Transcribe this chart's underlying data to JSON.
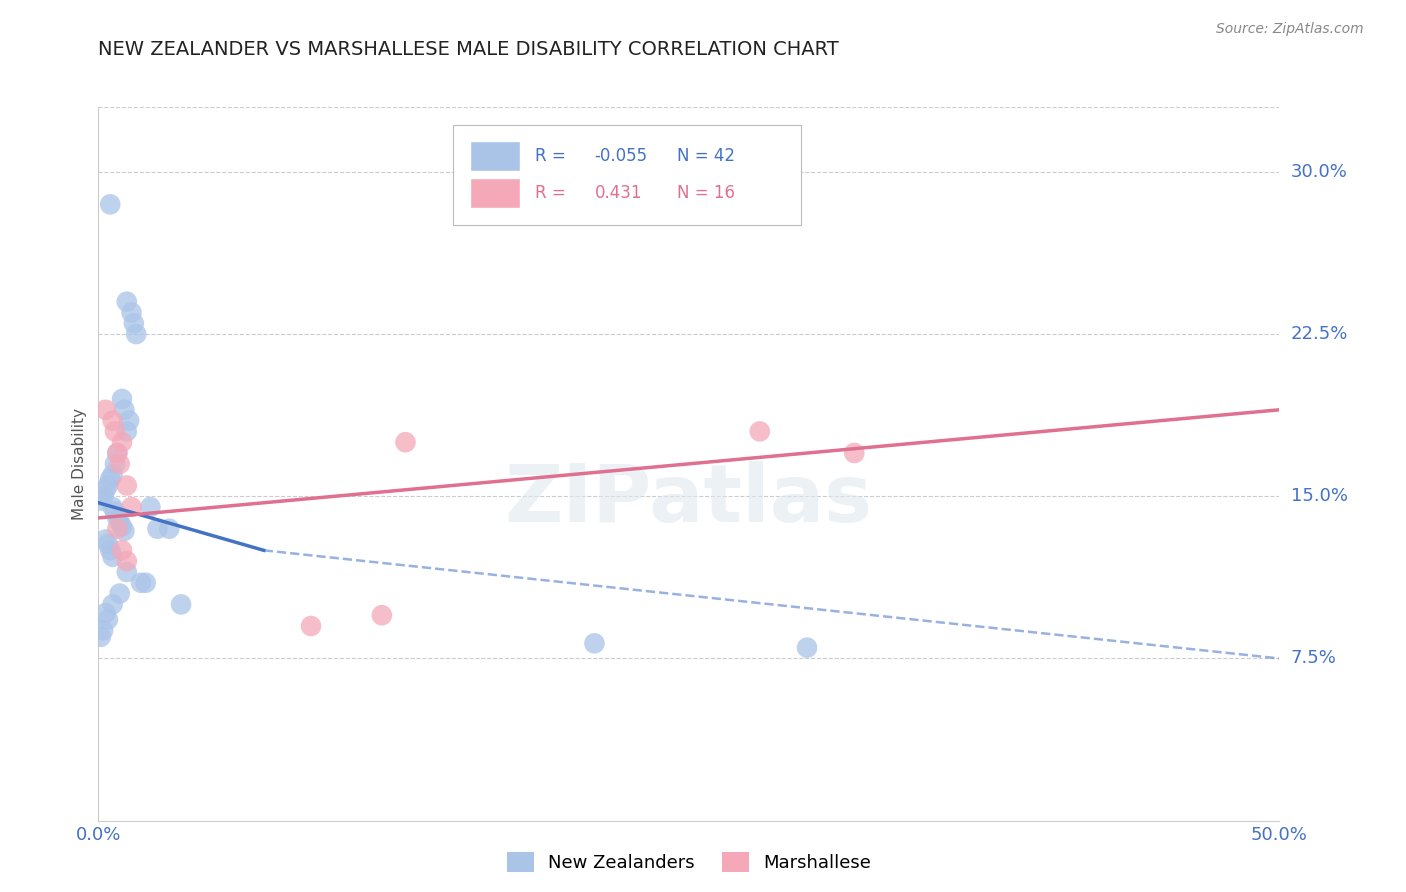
{
  "title": "NEW ZEALANDER VS MARSHALLESE MALE DISABILITY CORRELATION CHART",
  "source": "Source: ZipAtlas.com",
  "ylabel": "Male Disability",
  "xlim": [
    0.0,
    0.5
  ],
  "ylim": [
    0.0,
    0.33
  ],
  "ytick_vals": [
    0.075,
    0.15,
    0.225,
    0.3
  ],
  "ytick_labels": [
    "7.5%",
    "15.0%",
    "22.5%",
    "30.0%"
  ],
  "xtick_vals": [
    0.0,
    0.125,
    0.25,
    0.375,
    0.5
  ],
  "xtick_labels": [
    "0.0%",
    "",
    "",
    "",
    "50.0%"
  ],
  "nz_R": -0.055,
  "nz_N": 42,
  "marsh_R": 0.431,
  "marsh_N": 16,
  "nz_color": "#aac4e8",
  "marsh_color": "#f4a8b8",
  "nz_line_color": "#4472c4",
  "marsh_line_color": "#e07090",
  "tick_label_color": "#4472c4",
  "grid_color": "#cccccc",
  "nz_x": [
    0.005,
    0.012,
    0.014,
    0.015,
    0.016,
    0.01,
    0.011,
    0.013,
    0.012,
    0.008,
    0.007,
    0.006,
    0.005,
    0.004,
    0.003,
    0.002,
    0.001,
    0.006,
    0.007,
    0.008,
    0.009,
    0.01,
    0.011,
    0.003,
    0.004,
    0.005,
    0.006,
    0.022,
    0.025,
    0.03,
    0.035,
    0.012,
    0.018,
    0.02,
    0.009,
    0.006,
    0.003,
    0.004,
    0.002,
    0.001,
    0.21,
    0.3
  ],
  "nz_y": [
    0.285,
    0.24,
    0.235,
    0.23,
    0.225,
    0.195,
    0.19,
    0.185,
    0.18,
    0.17,
    0.165,
    0.16,
    0.158,
    0.155,
    0.153,
    0.15,
    0.148,
    0.145,
    0.143,
    0.14,
    0.138,
    0.136,
    0.134,
    0.13,
    0.128,
    0.125,
    0.122,
    0.145,
    0.135,
    0.135,
    0.1,
    0.115,
    0.11,
    0.11,
    0.105,
    0.1,
    0.096,
    0.093,
    0.088,
    0.085,
    0.082,
    0.08
  ],
  "marsh_x": [
    0.003,
    0.006,
    0.007,
    0.008,
    0.009,
    0.01,
    0.012,
    0.014,
    0.008,
    0.01,
    0.012,
    0.13,
    0.28,
    0.32,
    0.09,
    0.12
  ],
  "marsh_y": [
    0.19,
    0.185,
    0.18,
    0.17,
    0.165,
    0.175,
    0.155,
    0.145,
    0.135,
    0.125,
    0.12,
    0.175,
    0.18,
    0.17,
    0.09,
    0.095
  ],
  "nz_line_start": 0.0,
  "nz_line_solid_end": 0.07,
  "nz_line_end": 0.5,
  "nz_line_y0": 0.147,
  "nz_line_y_solid_end": 0.125,
  "nz_line_y_end": 0.075,
  "marsh_line_start": 0.0,
  "marsh_line_end": 0.5,
  "marsh_line_y0": 0.14,
  "marsh_line_y_end": 0.19
}
